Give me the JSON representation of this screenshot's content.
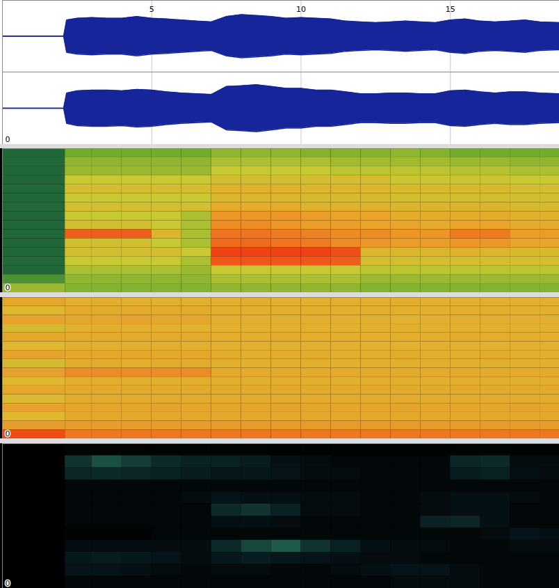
{
  "chart_data": [
    {
      "type": "area",
      "xlim": [
        0,
        18.65
      ],
      "xticks": [
        5,
        10,
        15
      ],
      "grid": true,
      "tick_labels": "x",
      "ylim": [
        -1,
        1
      ],
      "annotation": "0",
      "x": [
        0,
        2.05,
        2.15,
        2.5,
        3,
        3.5,
        4,
        4.5,
        5,
        5.5,
        6,
        6.5,
        7,
        7.5,
        8,
        8.5,
        9,
        9.5,
        10,
        10.5,
        11,
        11.5,
        12,
        12.5,
        13,
        13.5,
        14,
        14.5,
        15,
        15.5,
        16,
        16.5,
        17,
        17.5,
        18,
        18.65
      ],
      "series": [
        {
          "color": "#16259a",
          "values": [
            0,
            0,
            0.45,
            0.5,
            0.52,
            0.5,
            0.5,
            0.55,
            0.5,
            0.48,
            0.45,
            0.42,
            0.4,
            0.55,
            0.6,
            0.58,
            0.55,
            0.5,
            0.52,
            0.5,
            0.48,
            0.42,
            0.4,
            0.38,
            0.4,
            0.42,
            0.4,
            0.38,
            0.45,
            0.48,
            0.42,
            0.4,
            0.42,
            0.45,
            0.4,
            0.38
          ]
        },
        {
          "color": "#16259a",
          "values": [
            0,
            0,
            0.42,
            0.48,
            0.5,
            0.5,
            0.48,
            0.52,
            0.5,
            0.45,
            0.42,
            0.4,
            0.38,
            0.6,
            0.62,
            0.65,
            0.6,
            0.55,
            0.55,
            0.5,
            0.5,
            0.45,
            0.4,
            0.4,
            0.42,
            0.42,
            0.4,
            0.4,
            0.48,
            0.5,
            0.45,
            0.42,
            0.45,
            0.45,
            0.42,
            0.4
          ]
        }
      ]
    },
    {
      "type": "heatmap",
      "xlim": [
        0,
        18.65
      ],
      "tick_labels": false,
      "annotation": "0",
      "color_range": [
        0,
        1
      ],
      "x_edges": [
        0,
        2.1,
        3,
        4,
        5,
        6,
        7,
        8,
        9,
        10,
        11,
        12,
        13,
        14,
        15,
        16,
        17,
        18,
        18.65
      ],
      "cells": [
        [
          0.1,
          0.35,
          0.35,
          0.35,
          0.35,
          0.35,
          0.4,
          0.4,
          0.4,
          0.38,
          0.38,
          0.38,
          0.4,
          0.38,
          0.35,
          0.35,
          0.35,
          0.35
        ],
        [
          0.1,
          0.4,
          0.4,
          0.4,
          0.4,
          0.4,
          0.45,
          0.45,
          0.45,
          0.45,
          0.43,
          0.43,
          0.43,
          0.43,
          0.42,
          0.42,
          0.4,
          0.4
        ],
        [
          0.1,
          0.42,
          0.42,
          0.42,
          0.42,
          0.42,
          0.5,
          0.5,
          0.5,
          0.5,
          0.48,
          0.48,
          0.48,
          0.48,
          0.47,
          0.47,
          0.45,
          0.45
        ],
        [
          0.1,
          0.5,
          0.5,
          0.5,
          0.5,
          0.5,
          0.55,
          0.55,
          0.55,
          0.55,
          0.55,
          0.55,
          0.52,
          0.52,
          0.52,
          0.52,
          0.5,
          0.5
        ],
        [
          0.1,
          0.55,
          0.55,
          0.55,
          0.55,
          0.55,
          0.62,
          0.62,
          0.62,
          0.6,
          0.6,
          0.6,
          0.58,
          0.58,
          0.58,
          0.58,
          0.55,
          0.55
        ],
        [
          0.1,
          0.5,
          0.5,
          0.5,
          0.5,
          0.5,
          0.6,
          0.6,
          0.6,
          0.58,
          0.58,
          0.58,
          0.56,
          0.56,
          0.56,
          0.56,
          0.55,
          0.55
        ],
        [
          0.1,
          0.55,
          0.55,
          0.55,
          0.55,
          0.55,
          0.65,
          0.65,
          0.65,
          0.62,
          0.62,
          0.62,
          0.6,
          0.6,
          0.6,
          0.6,
          0.58,
          0.58
        ],
        [
          0.1,
          0.5,
          0.5,
          0.5,
          0.5,
          0.45,
          0.72,
          0.72,
          0.72,
          0.7,
          0.68,
          0.68,
          0.65,
          0.65,
          0.65,
          0.65,
          0.62,
          0.62
        ],
        [
          0.1,
          0.55,
          0.55,
          0.55,
          0.5,
          0.45,
          0.75,
          0.75,
          0.72,
          0.7,
          0.7,
          0.68,
          0.68,
          0.65,
          0.68,
          0.68,
          0.65,
          0.65
        ],
        [
          0.1,
          0.88,
          0.88,
          0.88,
          0.6,
          0.45,
          0.82,
          0.82,
          0.8,
          0.78,
          0.75,
          0.75,
          0.72,
          0.72,
          0.8,
          0.8,
          0.7,
          0.7
        ],
        [
          0.1,
          0.55,
          0.55,
          0.55,
          0.5,
          0.45,
          0.85,
          0.85,
          0.82,
          0.8,
          0.75,
          0.72,
          0.7,
          0.7,
          0.72,
          0.72,
          0.68,
          0.68
        ],
        [
          0.1,
          0.55,
          0.55,
          0.55,
          0.55,
          0.5,
          0.95,
          0.95,
          0.95,
          0.95,
          0.92,
          0.6,
          0.6,
          0.6,
          0.62,
          0.6,
          0.58,
          0.58
        ],
        [
          0.1,
          0.5,
          0.5,
          0.5,
          0.5,
          0.45,
          0.9,
          0.9,
          0.9,
          0.9,
          0.88,
          0.55,
          0.55,
          0.55,
          0.55,
          0.55,
          0.55,
          0.55
        ],
        [
          0.1,
          0.45,
          0.45,
          0.45,
          0.45,
          0.42,
          0.5,
          0.5,
          0.5,
          0.5,
          0.5,
          0.48,
          0.48,
          0.48,
          0.48,
          0.48,
          0.48,
          0.48
        ],
        [
          0.25,
          0.4,
          0.4,
          0.4,
          0.4,
          0.4,
          0.45,
          0.45,
          0.45,
          0.45,
          0.45,
          0.42,
          0.42,
          0.42,
          0.42,
          0.42,
          0.42,
          0.42
        ],
        [
          0.42,
          0.38,
          0.38,
          0.38,
          0.38,
          0.38,
          0.4,
          0.4,
          0.4,
          0.4,
          0.4,
          0.38,
          0.38,
          0.38,
          0.38,
          0.38,
          0.38,
          0.38
        ]
      ]
    },
    {
      "type": "heatmap",
      "xlim": [
        0,
        18.65
      ],
      "tick_labels": false,
      "annotation": "0",
      "color_range": [
        0,
        1
      ],
      "x_edges": [
        0,
        2.1,
        3,
        4,
        5,
        6,
        7,
        8,
        9,
        10,
        11,
        12,
        13,
        14,
        15,
        16,
        17,
        18,
        18.65
      ],
      "cells": [
        [
          0.6,
          0.55,
          0.56,
          0.55,
          0.54,
          0.55,
          0.55,
          0.56,
          0.55,
          0.54,
          0.55,
          0.55,
          0.56,
          0.55,
          0.54,
          0.55,
          0.55,
          0.55
        ],
        [
          0.5,
          0.58,
          0.57,
          0.58,
          0.58,
          0.57,
          0.56,
          0.55,
          0.56,
          0.56,
          0.55,
          0.56,
          0.56,
          0.55,
          0.56,
          0.56,
          0.55,
          0.56
        ],
        [
          0.62,
          0.6,
          0.6,
          0.61,
          0.6,
          0.6,
          0.56,
          0.55,
          0.55,
          0.56,
          0.55,
          0.55,
          0.54,
          0.55,
          0.55,
          0.56,
          0.55,
          0.55
        ],
        [
          0.45,
          0.55,
          0.56,
          0.55,
          0.55,
          0.54,
          0.55,
          0.54,
          0.55,
          0.55,
          0.54,
          0.55,
          0.55,
          0.54,
          0.55,
          0.55,
          0.54,
          0.55
        ],
        [
          0.6,
          0.58,
          0.58,
          0.57,
          0.58,
          0.58,
          0.56,
          0.56,
          0.57,
          0.56,
          0.56,
          0.55,
          0.56,
          0.56,
          0.57,
          0.56,
          0.56,
          0.55
        ],
        [
          0.5,
          0.56,
          0.55,
          0.56,
          0.56,
          0.55,
          0.55,
          0.55,
          0.54,
          0.55,
          0.55,
          0.55,
          0.54,
          0.55,
          0.55,
          0.54,
          0.55,
          0.55
        ],
        [
          0.62,
          0.6,
          0.6,
          0.6,
          0.59,
          0.6,
          0.57,
          0.56,
          0.57,
          0.57,
          0.56,
          0.56,
          0.57,
          0.56,
          0.56,
          0.57,
          0.56,
          0.56
        ],
        [
          0.45,
          0.57,
          0.57,
          0.56,
          0.57,
          0.57,
          0.55,
          0.55,
          0.56,
          0.55,
          0.55,
          0.55,
          0.55,
          0.56,
          0.55,
          0.55,
          0.55,
          0.55
        ],
        [
          0.62,
          0.72,
          0.72,
          0.72,
          0.72,
          0.72,
          0.58,
          0.58,
          0.57,
          0.58,
          0.58,
          0.57,
          0.58,
          0.58,
          0.57,
          0.58,
          0.58,
          0.57
        ],
        [
          0.5,
          0.56,
          0.56,
          0.56,
          0.55,
          0.56,
          0.56,
          0.55,
          0.56,
          0.56,
          0.55,
          0.56,
          0.56,
          0.55,
          0.56,
          0.56,
          0.55,
          0.56
        ],
        [
          0.6,
          0.58,
          0.58,
          0.57,
          0.58,
          0.58,
          0.57,
          0.58,
          0.58,
          0.57,
          0.58,
          0.58,
          0.57,
          0.58,
          0.58,
          0.57,
          0.58,
          0.58
        ],
        [
          0.48,
          0.57,
          0.57,
          0.58,
          0.57,
          0.57,
          0.58,
          0.57,
          0.57,
          0.58,
          0.57,
          0.57,
          0.58,
          0.57,
          0.57,
          0.58,
          0.57,
          0.57
        ],
        [
          0.62,
          0.6,
          0.6,
          0.6,
          0.61,
          0.6,
          0.6,
          0.6,
          0.61,
          0.6,
          0.6,
          0.6,
          0.61,
          0.6,
          0.6,
          0.6,
          0.61,
          0.6
        ],
        [
          0.5,
          0.6,
          0.6,
          0.6,
          0.6,
          0.6,
          0.6,
          0.6,
          0.6,
          0.6,
          0.6,
          0.6,
          0.6,
          0.6,
          0.6,
          0.6,
          0.6,
          0.6
        ],
        [
          0.65,
          0.65,
          0.65,
          0.65,
          0.65,
          0.65,
          0.66,
          0.66,
          0.66,
          0.66,
          0.66,
          0.66,
          0.66,
          0.66,
          0.66,
          0.66,
          0.66,
          0.66
        ],
        [
          0.95,
          0.8,
          0.8,
          0.8,
          0.8,
          0.8,
          0.8,
          0.8,
          0.8,
          0.8,
          0.8,
          0.8,
          0.8,
          0.8,
          0.8,
          0.8,
          0.8,
          0.8
        ]
      ]
    },
    {
      "type": "heatmap",
      "xlim": [
        0,
        18.65
      ],
      "tick_labels": false,
      "annotation": "0",
      "color_range": [
        0,
        1
      ],
      "x_edges": [
        0,
        2.1,
        3,
        4,
        5,
        6,
        7,
        8,
        9,
        10,
        11,
        12,
        13,
        14,
        15,
        16,
        17,
        18,
        18.65
      ],
      "cells": [
        [
          0,
          0.05,
          0.05,
          0.05,
          0.05,
          0.05,
          0.05,
          0.05,
          0.05,
          0.05,
          0.05,
          0.05,
          0.05,
          0.05,
          0.05,
          0.05,
          0.05,
          0.05
        ],
        [
          0,
          0.55,
          0.7,
          0.6,
          0.5,
          0.4,
          0.4,
          0.35,
          0.2,
          0.15,
          0.1,
          0.1,
          0.1,
          0.1,
          0.45,
          0.5,
          0.15,
          0.15
        ],
        [
          0,
          0.45,
          0.5,
          0.45,
          0.4,
          0.35,
          0.3,
          0.3,
          0.25,
          0.15,
          0.15,
          0.1,
          0.1,
          0.1,
          0.35,
          0.4,
          0.2,
          0.15
        ],
        [
          0,
          0.1,
          0.1,
          0.1,
          0.1,
          0.1,
          0.1,
          0.1,
          0.1,
          0.1,
          0.1,
          0.1,
          0.1,
          0.1,
          0.1,
          0.1,
          0.1,
          0.1
        ],
        [
          0,
          0.1,
          0.1,
          0.1,
          0.1,
          0.15,
          0.25,
          0.2,
          0.2,
          0.15,
          0.15,
          0.1,
          0.1,
          0.15,
          0.2,
          0.2,
          0.15,
          0.1
        ],
        [
          0,
          0.1,
          0.1,
          0.1,
          0.1,
          0.1,
          0.5,
          0.55,
          0.4,
          0.15,
          0.15,
          0.1,
          0.1,
          0.15,
          0.2,
          0.2,
          0.1,
          0.1
        ],
        [
          0,
          0.1,
          0.1,
          0.1,
          0.1,
          0.1,
          0.2,
          0.2,
          0.15,
          0.1,
          0.1,
          0.1,
          0.1,
          0.4,
          0.45,
          0.2,
          0.1,
          0.1
        ],
        [
          0,
          0.05,
          0.05,
          0.05,
          0.1,
          0.1,
          0.1,
          0.1,
          0.1,
          0.1,
          0.1,
          0.1,
          0.1,
          0.1,
          0.1,
          0.15,
          0.25,
          0.2
        ],
        [
          0,
          0.15,
          0.15,
          0.15,
          0.15,
          0.15,
          0.5,
          0.65,
          0.75,
          0.55,
          0.4,
          0.2,
          0.15,
          0.15,
          0.1,
          0.1,
          0.15,
          0.15
        ],
        [
          0,
          0.3,
          0.35,
          0.3,
          0.25,
          0.15,
          0.3,
          0.35,
          0.3,
          0.25,
          0.2,
          0.15,
          0.15,
          0.1,
          0.1,
          0.1,
          0.1,
          0.1
        ],
        [
          0,
          0.25,
          0.25,
          0.2,
          0.15,
          0.1,
          0.15,
          0.15,
          0.1,
          0.1,
          0.15,
          0.2,
          0.25,
          0.25,
          0.15,
          0.1,
          0.1,
          0.1
        ],
        [
          0,
          0.1,
          0.1,
          0.1,
          0.1,
          0.1,
          0.1,
          0.1,
          0.1,
          0.1,
          0.1,
          0.1,
          0.15,
          0.15,
          0.15,
          0.1,
          0.1,
          0.1
        ]
      ]
    }
  ]
}
